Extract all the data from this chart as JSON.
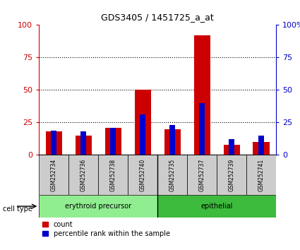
{
  "title": "GDS3405 / 1451725_a_at",
  "samples": [
    "GSM252734",
    "GSM252736",
    "GSM252738",
    "GSM252740",
    "GSM252735",
    "GSM252737",
    "GSM252739",
    "GSM252741"
  ],
  "red_values": [
    18,
    15,
    21,
    50,
    20,
    92,
    8,
    10
  ],
  "blue_values": [
    19,
    18,
    21,
    31,
    23,
    40,
    12,
    15
  ],
  "cell_types": [
    {
      "label": "erythroid precursor",
      "span": [
        0,
        4
      ],
      "color": "#90ee90"
    },
    {
      "label": "epithelial",
      "span": [
        4,
        8
      ],
      "color": "#3dbb3d"
    }
  ],
  "cell_type_label": "cell type",
  "ylim": [
    0,
    100
  ],
  "yticks": [
    0,
    25,
    50,
    75,
    100
  ],
  "ytick_labels_left": [
    "0",
    "25",
    "50",
    "75",
    "100"
  ],
  "ytick_labels_right": [
    "0",
    "25",
    "50",
    "75",
    "100%"
  ],
  "red_color": "#cc0000",
  "blue_color": "#0000cc",
  "legend_count": "count",
  "legend_pct": "percentile rank within the sample",
  "red_bar_width": 0.55,
  "blue_bar_width": 0.18,
  "background_color": "#ffffff",
  "sample_box_color": "#cccccc",
  "grid_color": "#000000"
}
